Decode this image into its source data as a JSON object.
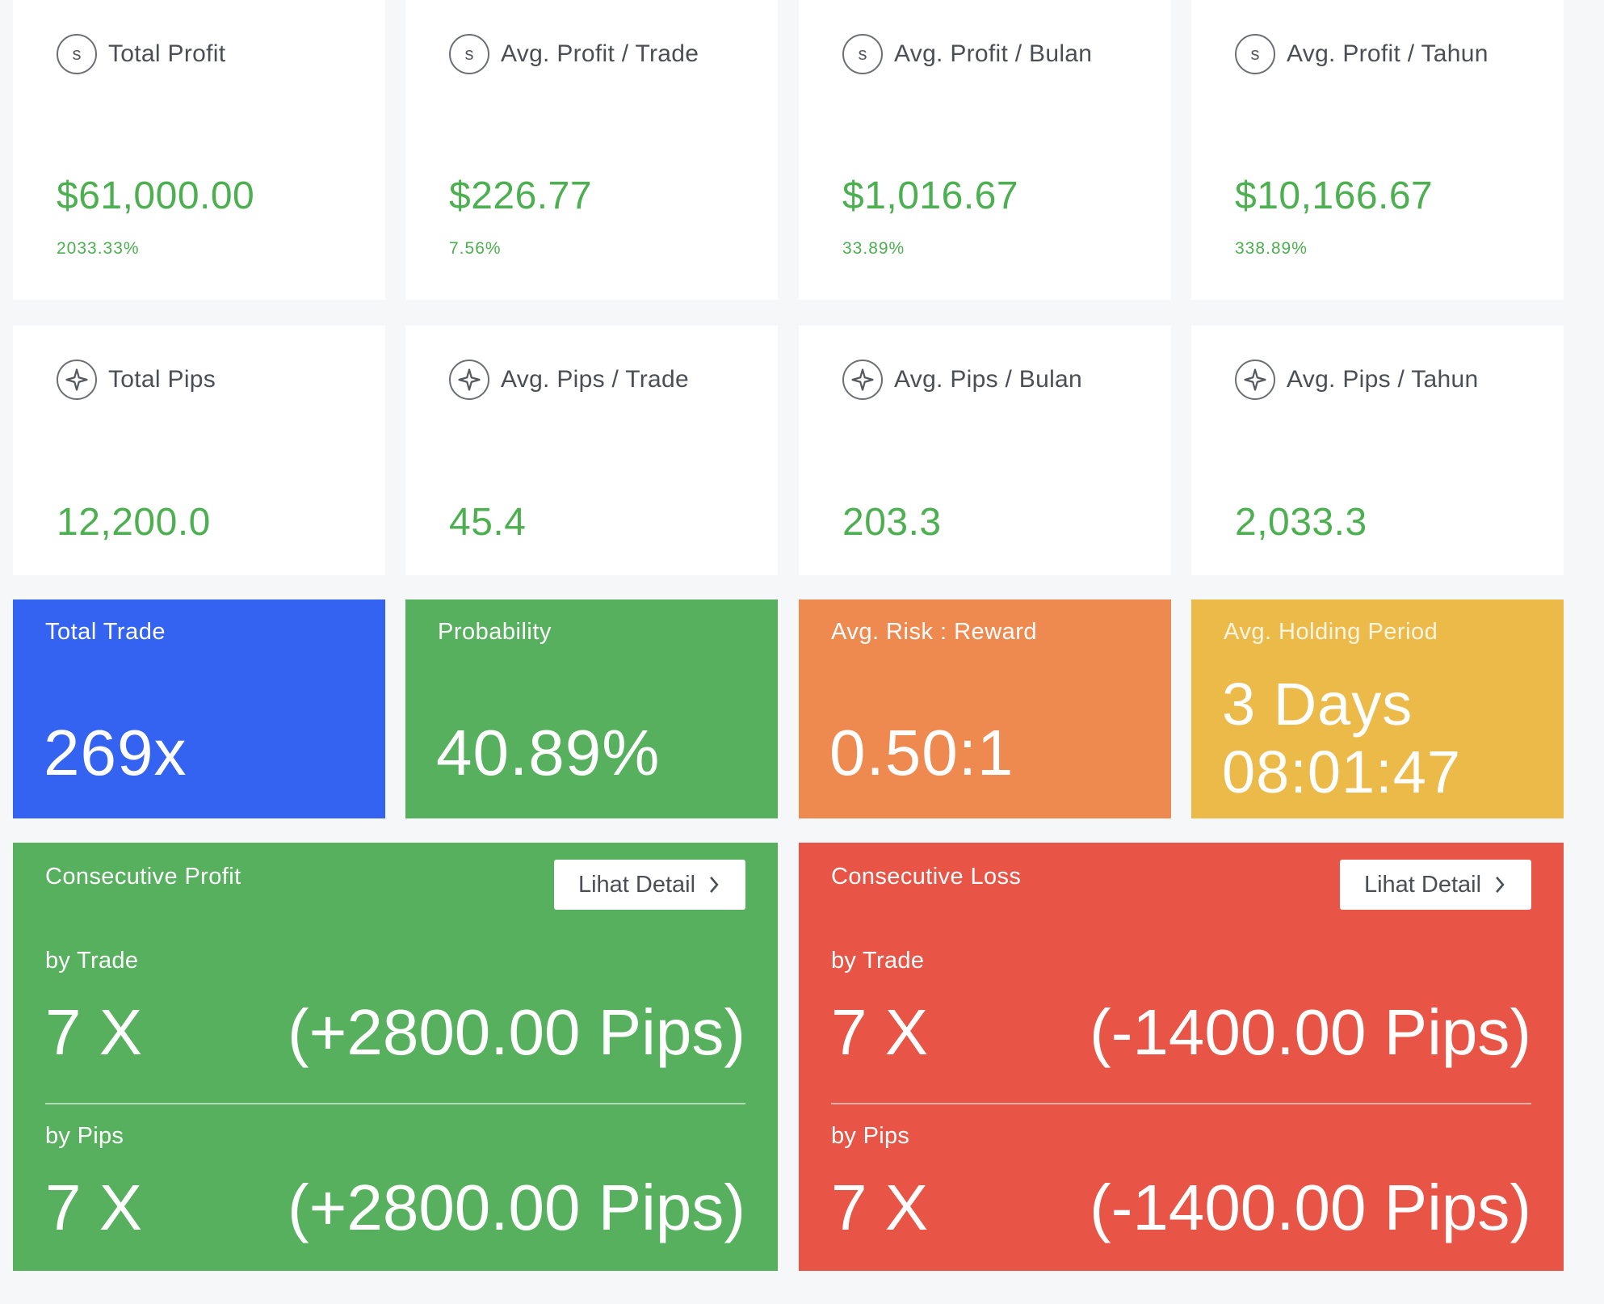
{
  "stats_profit": [
    {
      "icon": "dollar-icon",
      "title": "Total Profit",
      "value": "$61,000.00",
      "pct": "2033.33%"
    },
    {
      "icon": "dollar-icon",
      "title": "Avg. Profit / Trade",
      "value": "$226.77",
      "pct": "7.56%"
    },
    {
      "icon": "dollar-icon",
      "title": "Avg. Profit / Bulan",
      "value": "$1,016.67",
      "pct": "33.89%"
    },
    {
      "icon": "dollar-icon",
      "title": "Avg. Profit / Tahun",
      "value": "$10,166.67",
      "pct": "338.89%"
    }
  ],
  "stats_pips": [
    {
      "icon": "sparkle-icon",
      "title": "Total Pips",
      "value": "12,200.0"
    },
    {
      "icon": "sparkle-icon",
      "title": "Avg. Pips / Trade",
      "value": "45.4"
    },
    {
      "icon": "sparkle-icon",
      "title": "Avg. Pips / Bulan",
      "value": "203.3"
    },
    {
      "icon": "sparkle-icon",
      "title": "Avg. Pips / Tahun",
      "value": "2,033.3"
    }
  ],
  "tiles": [
    {
      "label": "Total Trade",
      "value": "269x",
      "color": "#3563f1"
    },
    {
      "label": "Probability",
      "value": "40.89%",
      "color": "#56b05e"
    },
    {
      "label": "Avg. Risk : Reward",
      "value": "0.50:1",
      "color": "#ee8a50"
    },
    {
      "label": "Avg. Holding Period",
      "value_line1": "3 Days",
      "value_line2": "08:01:47",
      "color": "#ecba48"
    }
  ],
  "consecutive_profit": {
    "title": "Consecutive Profit",
    "button": "Lihat Detail",
    "by_trade_label": "by Trade",
    "by_trade_count": "7 X",
    "by_trade_pips": "(+2800.00 Pips)",
    "by_pips_label": "by Pips",
    "by_pips_count": "7 X",
    "by_pips_pips": "(+2800.00 Pips)",
    "color": "#56b05e"
  },
  "consecutive_loss": {
    "title": "Consecutive Loss",
    "button": "Lihat Detail",
    "by_trade_label": "by Trade",
    "by_trade_count": "7 X",
    "by_trade_pips": "(-1400.00 Pips)",
    "by_pips_label": "by Pips",
    "by_pips_count": "7 X",
    "by_pips_pips": "(-1400.00 Pips)",
    "color": "#e85445"
  }
}
